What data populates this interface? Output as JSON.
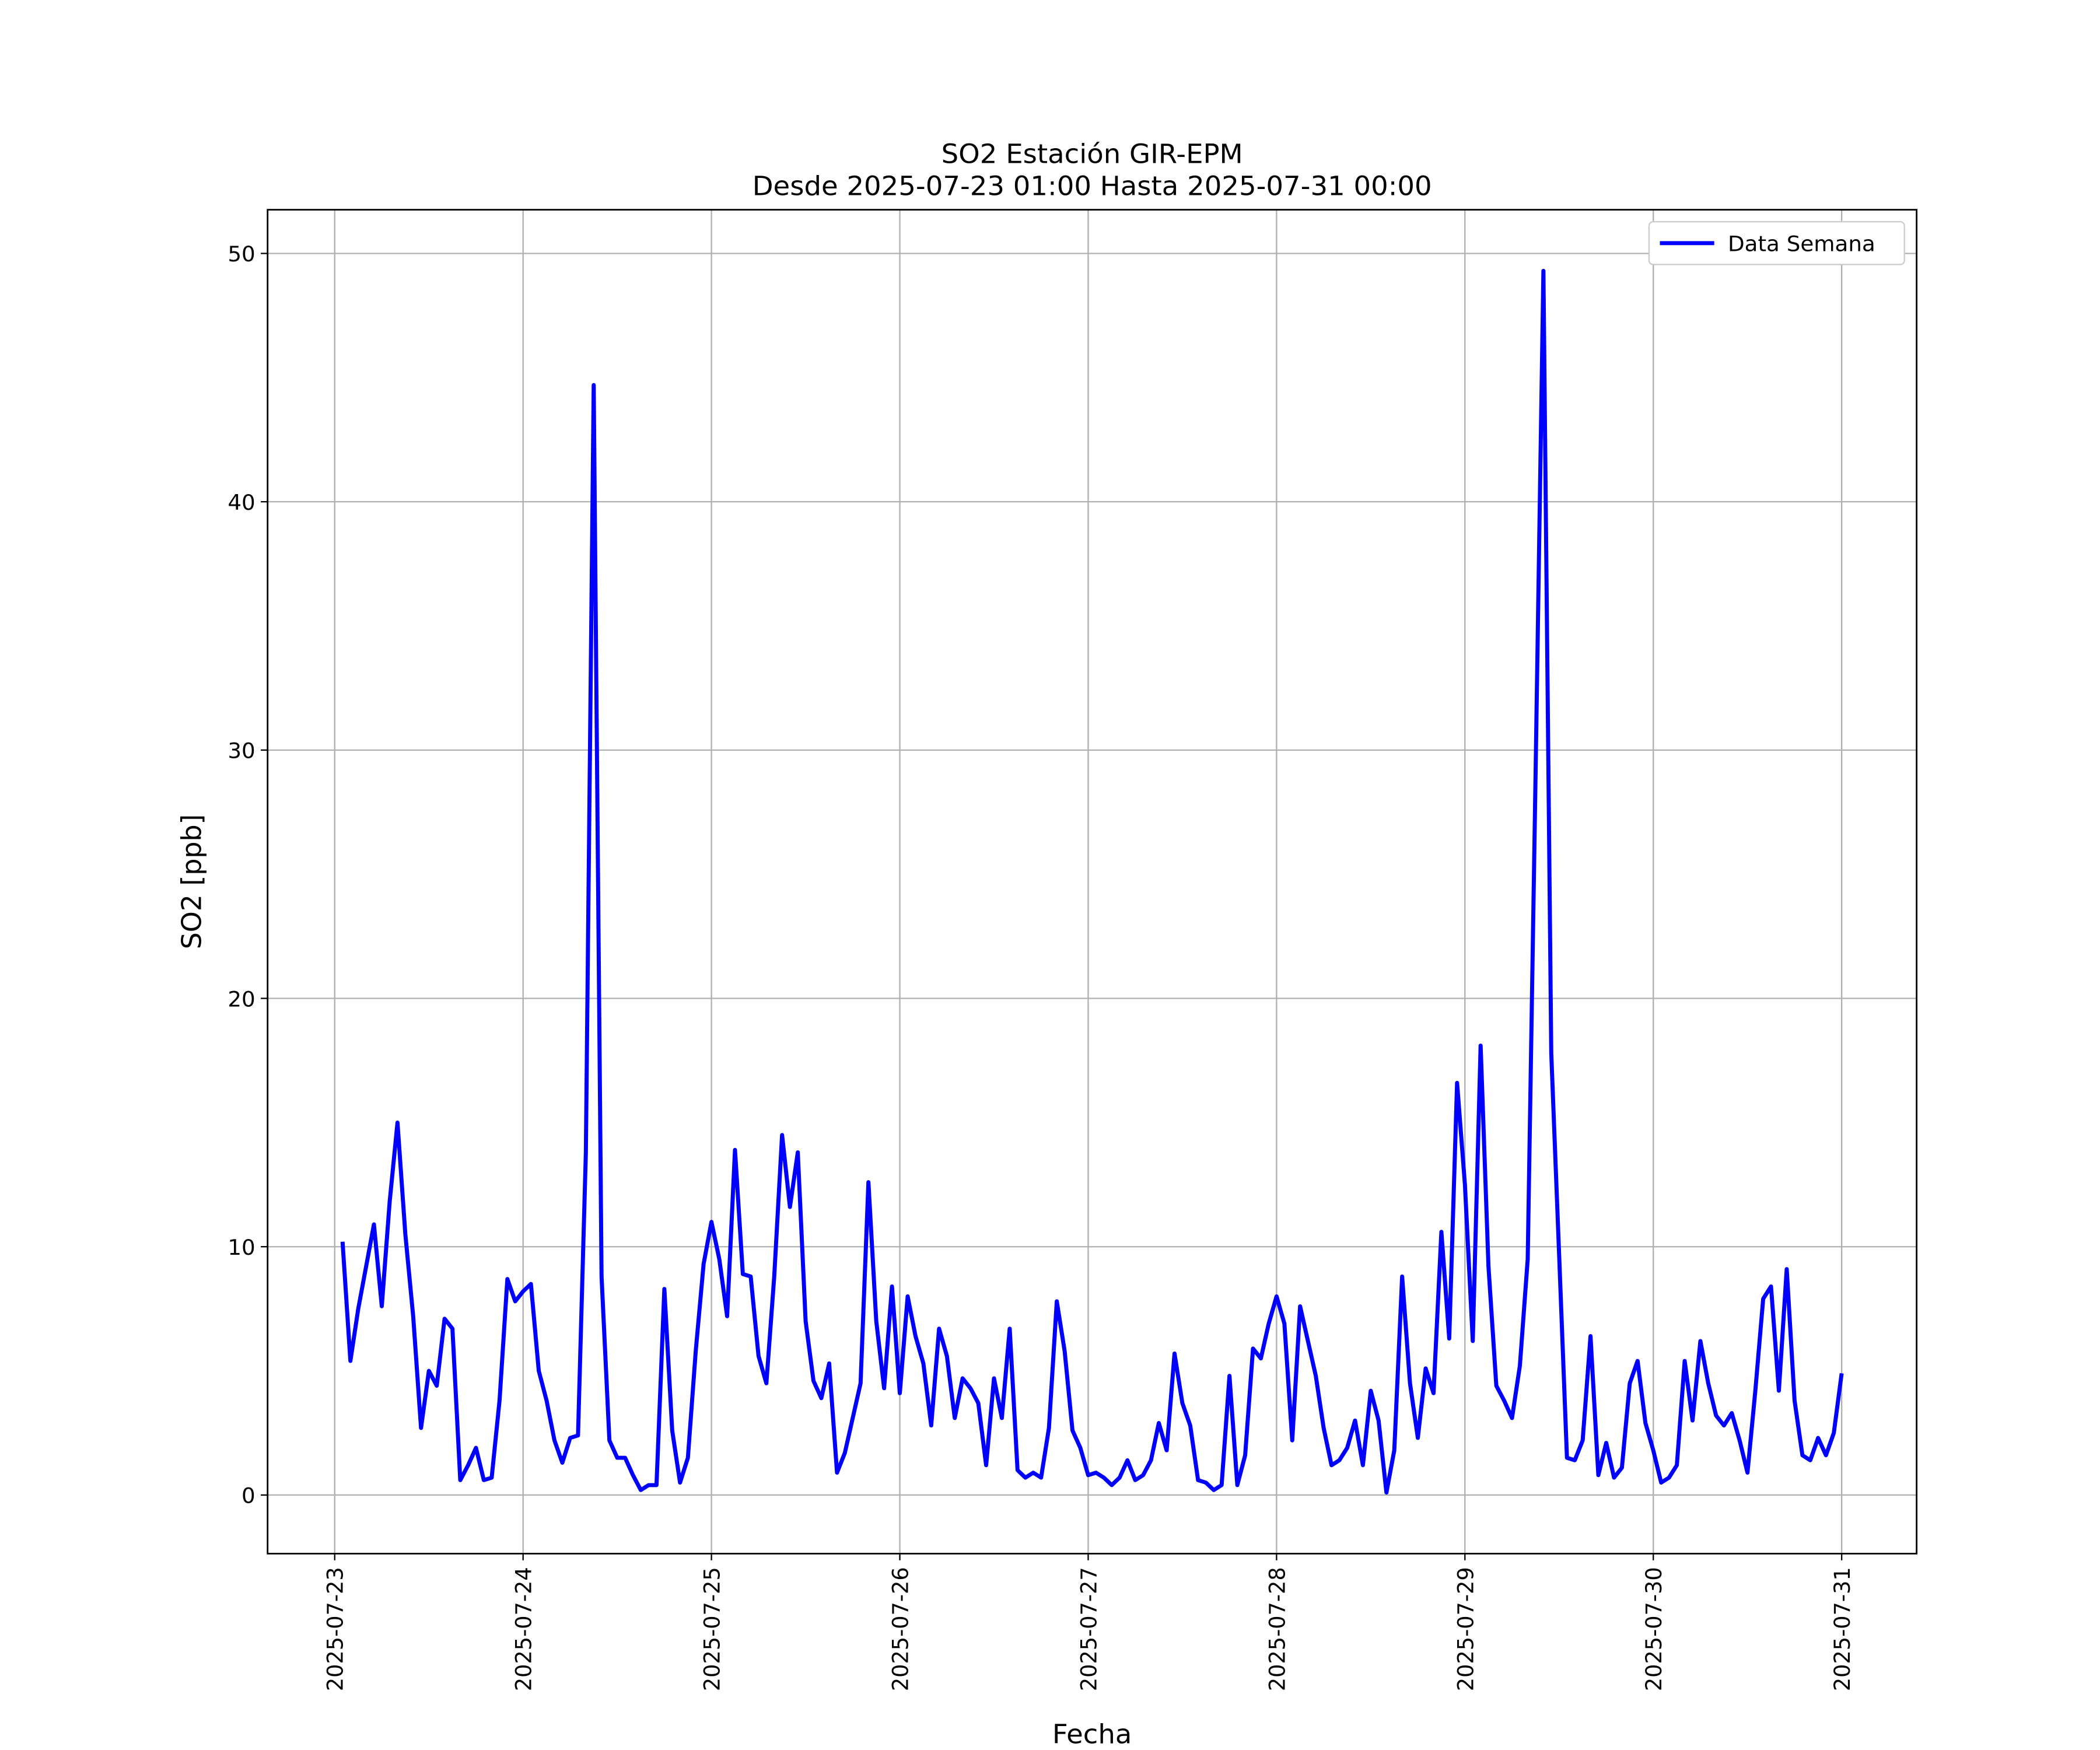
{
  "chart_data": {
    "type": "line",
    "title": "SO2 Estación GIR-EPM",
    "subtitle": "Desde 2025-07-23 01:00 Hasta 2025-07-31 00:00",
    "x_label": "Fecha",
    "y_label": "SO2 [ppb]",
    "xlim": [
      "2025-07-22 15:27",
      "2025-07-31 09:33"
    ],
    "xticks": [
      "2025-07-23",
      "2025-07-24",
      "2025-07-25",
      "2025-07-26",
      "2025-07-27",
      "2025-07-28",
      "2025-07-29",
      "2025-07-30",
      "2025-07-31"
    ],
    "ylim": [
      -2.36,
      51.76
    ],
    "yticks": [
      0,
      10,
      20,
      30,
      40,
      50
    ],
    "grid": true,
    "legend": "upper right",
    "x": [
      "2025-07-23 01:00",
      "2025-07-23 02:00",
      "2025-07-23 03:00",
      "2025-07-23 04:00",
      "2025-07-23 05:00",
      "2025-07-23 06:00",
      "2025-07-23 07:00",
      "2025-07-23 08:00",
      "2025-07-23 09:00",
      "2025-07-23 10:00",
      "2025-07-23 11:00",
      "2025-07-23 12:00",
      "2025-07-23 13:00",
      "2025-07-23 14:00",
      "2025-07-23 15:00",
      "2025-07-23 16:00",
      "2025-07-23 17:00",
      "2025-07-23 18:00",
      "2025-07-23 19:00",
      "2025-07-23 20:00",
      "2025-07-23 21:00",
      "2025-07-23 22:00",
      "2025-07-23 23:00",
      "2025-07-24 00:00",
      "2025-07-24 01:00",
      "2025-07-24 02:00",
      "2025-07-24 03:00",
      "2025-07-24 04:00",
      "2025-07-24 05:00",
      "2025-07-24 06:00",
      "2025-07-24 07:00",
      "2025-07-24 08:00",
      "2025-07-24 09:00",
      "2025-07-24 10:00",
      "2025-07-24 11:00",
      "2025-07-24 12:00",
      "2025-07-24 13:00",
      "2025-07-24 14:00",
      "2025-07-24 15:00",
      "2025-07-24 16:00",
      "2025-07-24 17:00",
      "2025-07-24 18:00",
      "2025-07-24 19:00",
      "2025-07-24 20:00",
      "2025-07-24 21:00",
      "2025-07-24 22:00",
      "2025-07-24 23:00",
      "2025-07-25 00:00",
      "2025-07-25 01:00",
      "2025-07-25 02:00",
      "2025-07-25 03:00",
      "2025-07-25 04:00",
      "2025-07-25 05:00",
      "2025-07-25 06:00",
      "2025-07-25 07:00",
      "2025-07-25 08:00",
      "2025-07-25 09:00",
      "2025-07-25 10:00",
      "2025-07-25 11:00",
      "2025-07-25 12:00",
      "2025-07-25 13:00",
      "2025-07-25 14:00",
      "2025-07-25 15:00",
      "2025-07-25 16:00",
      "2025-07-25 17:00",
      "2025-07-25 18:00",
      "2025-07-25 19:00",
      "2025-07-25 20:00",
      "2025-07-25 21:00",
      "2025-07-25 22:00",
      "2025-07-25 23:00",
      "2025-07-26 00:00",
      "2025-07-26 01:00",
      "2025-07-26 02:00",
      "2025-07-26 03:00",
      "2025-07-26 04:00",
      "2025-07-26 05:00",
      "2025-07-26 06:00",
      "2025-07-26 07:00",
      "2025-07-26 08:00",
      "2025-07-26 09:00",
      "2025-07-26 10:00",
      "2025-07-26 11:00",
      "2025-07-26 12:00",
      "2025-07-26 13:00",
      "2025-07-26 14:00",
      "2025-07-26 15:00",
      "2025-07-26 16:00",
      "2025-07-26 17:00",
      "2025-07-26 18:00",
      "2025-07-26 19:00",
      "2025-07-26 20:00",
      "2025-07-26 21:00",
      "2025-07-26 22:00",
      "2025-07-26 23:00",
      "2025-07-27 00:00",
      "2025-07-27 01:00",
      "2025-07-27 02:00",
      "2025-07-27 03:00",
      "2025-07-27 04:00",
      "2025-07-27 05:00",
      "2025-07-27 06:00",
      "2025-07-27 07:00",
      "2025-07-27 08:00",
      "2025-07-27 09:00",
      "2025-07-27 10:00",
      "2025-07-27 11:00",
      "2025-07-27 12:00",
      "2025-07-27 13:00",
      "2025-07-27 14:00",
      "2025-07-27 15:00",
      "2025-07-27 16:00",
      "2025-07-27 17:00",
      "2025-07-27 18:00",
      "2025-07-27 19:00",
      "2025-07-27 20:00",
      "2025-07-27 21:00",
      "2025-07-27 22:00",
      "2025-07-27 23:00",
      "2025-07-28 00:00",
      "2025-07-28 01:00",
      "2025-07-28 02:00",
      "2025-07-28 03:00",
      "2025-07-28 04:00",
      "2025-07-28 05:00",
      "2025-07-28 06:00",
      "2025-07-28 07:00",
      "2025-07-28 08:00",
      "2025-07-28 09:00",
      "2025-07-28 10:00",
      "2025-07-28 11:00",
      "2025-07-28 12:00",
      "2025-07-28 13:00",
      "2025-07-28 14:00",
      "2025-07-28 15:00",
      "2025-07-28 16:00",
      "2025-07-28 17:00",
      "2025-07-28 18:00",
      "2025-07-28 19:00",
      "2025-07-28 20:00",
      "2025-07-28 21:00",
      "2025-07-28 22:00",
      "2025-07-28 23:00",
      "2025-07-29 00:00",
      "2025-07-29 01:00",
      "2025-07-29 02:00",
      "2025-07-29 03:00",
      "2025-07-29 04:00",
      "2025-07-29 05:00",
      "2025-07-29 06:00",
      "2025-07-29 07:00",
      "2025-07-29 08:00",
      "2025-07-29 09:00",
      "2025-07-29 10:00",
      "2025-07-29 11:00",
      "2025-07-29 12:00",
      "2025-07-29 13:00",
      "2025-07-29 14:00",
      "2025-07-29 15:00",
      "2025-07-29 16:00",
      "2025-07-29 17:00",
      "2025-07-29 18:00",
      "2025-07-29 19:00",
      "2025-07-29 20:00",
      "2025-07-29 21:00",
      "2025-07-29 22:00",
      "2025-07-29 23:00",
      "2025-07-30 00:00",
      "2025-07-30 01:00",
      "2025-07-30 02:00",
      "2025-07-30 03:00",
      "2025-07-30 04:00",
      "2025-07-30 05:00",
      "2025-07-30 06:00",
      "2025-07-30 07:00",
      "2025-07-30 08:00",
      "2025-07-30 09:00",
      "2025-07-30 10:00",
      "2025-07-30 11:00",
      "2025-07-30 12:00",
      "2025-07-30 13:00",
      "2025-07-30 14:00",
      "2025-07-30 15:00",
      "2025-07-30 16:00",
      "2025-07-30 17:00",
      "2025-07-30 18:00",
      "2025-07-30 19:00",
      "2025-07-30 20:00",
      "2025-07-30 21:00",
      "2025-07-30 22:00",
      "2025-07-30 23:00",
      "2025-07-31 00:00"
    ],
    "series": [
      {
        "name": "Data Semana",
        "color": "#0000ff",
        "values": [
          10.2,
          5.4,
          7.5,
          9.2,
          10.9,
          7.6,
          11.8,
          15.0,
          10.5,
          7.2,
          2.7,
          5.0,
          4.4,
          7.1,
          6.7,
          0.6,
          1.2,
          1.9,
          0.6,
          0.7,
          3.8,
          8.7,
          7.8,
          8.2,
          8.5,
          5.0,
          3.8,
          2.2,
          1.3,
          2.3,
          2.4,
          13.8,
          44.7,
          8.8,
          2.2,
          1.5,
          1.5,
          0.8,
          0.2,
          0.4,
          0.4,
          8.3,
          2.6,
          0.5,
          1.5,
          5.8,
          9.3,
          11.0,
          9.5,
          7.2,
          13.9,
          8.9,
          8.8,
          5.6,
          4.5,
          8.8,
          14.5,
          11.6,
          13.8,
          7.0,
          4.6,
          3.9,
          5.3,
          0.9,
          1.7,
          3.1,
          4.5,
          12.6,
          7.0,
          4.3,
          8.4,
          4.1,
          8.0,
          6.4,
          5.3,
          2.8,
          6.7,
          5.6,
          3.1,
          4.7,
          4.3,
          3.7,
          1.2,
          4.7,
          3.1,
          6.7,
          1.0,
          0.7,
          0.9,
          0.7,
          2.7,
          7.8,
          5.8,
          2.6,
          1.9,
          0.8,
          0.9,
          0.7,
          0.4,
          0.7,
          1.4,
          0.6,
          0.8,
          1.4,
          2.9,
          1.8,
          5.7,
          3.7,
          2.8,
          0.6,
          0.5,
          0.2,
          0.4,
          4.8,
          0.4,
          1.6,
          5.9,
          5.5,
          6.9,
          8.0,
          6.9,
          2.2,
          7.6,
          6.2,
          4.8,
          2.7,
          1.2,
          1.4,
          1.9,
          3.0,
          1.2,
          4.2,
          3.0,
          0.1,
          1.8,
          8.8,
          4.5,
          2.3,
          5.1,
          4.1,
          10.6,
          6.3,
          16.6,
          12.5,
          6.2,
          18.1,
          9.2,
          4.4,
          3.8,
          3.1,
          5.2,
          9.5,
          29.0,
          49.3,
          17.8,
          9.7,
          1.5,
          1.4,
          2.2,
          6.4,
          0.8,
          2.1,
          0.7,
          1.1,
          4.5,
          5.4,
          2.9,
          1.8,
          0.5,
          0.7,
          1.2,
          5.4,
          3.0,
          6.2,
          4.5,
          3.2,
          2.8,
          3.3,
          2.2,
          0.9,
          4.2,
          7.9,
          8.4,
          4.2,
          9.1,
          3.8,
          1.6,
          1.4,
          2.3,
          1.6,
          2.5,
          4.9
        ]
      }
    ]
  }
}
